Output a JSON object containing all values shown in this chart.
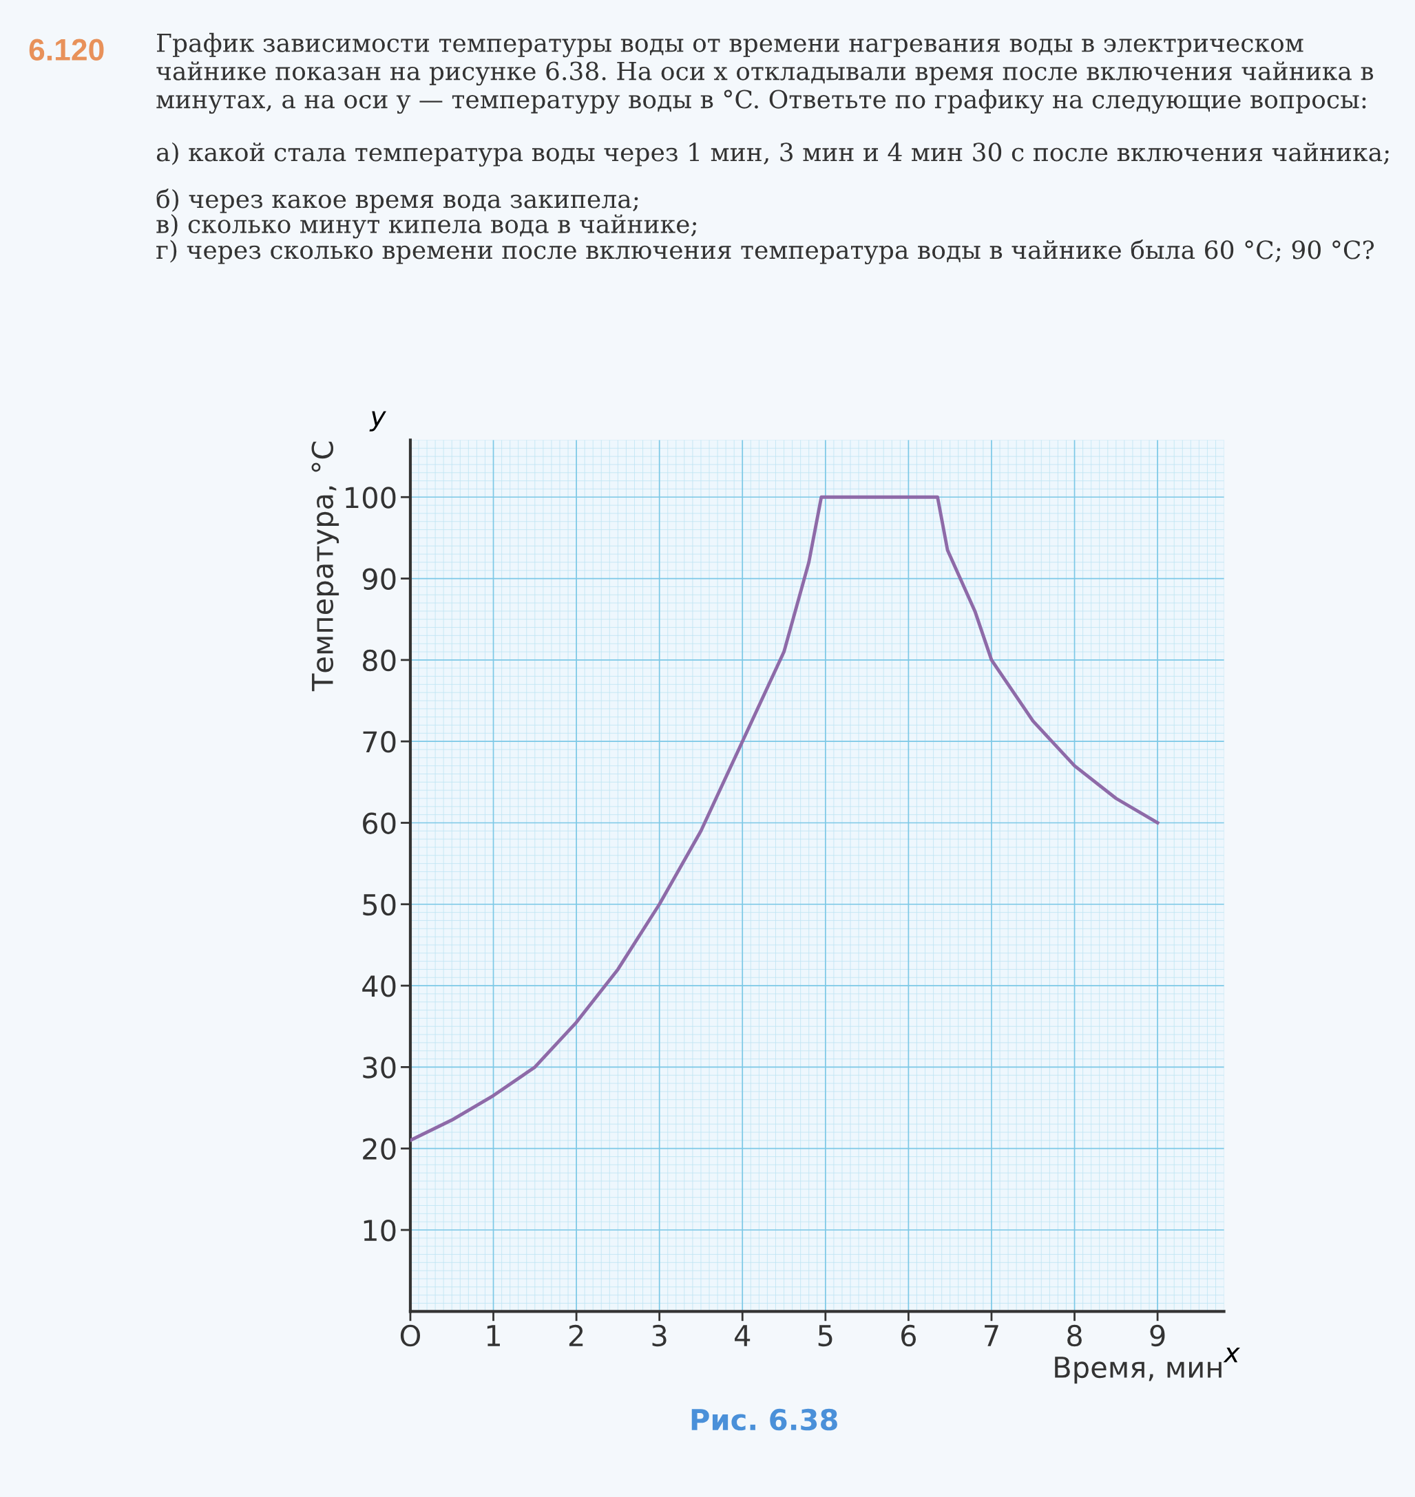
{
  "chart_data": {
    "type": "line",
    "title": "6.120",
    "annotations": [
      "График зависимости температуры воды от времени нагревания воды в электрическом чайнике показан на рисунке 6.38. На оси x откладывали время после включения чайника в минутах, а на оси y — температуру воды в °C. Ответьте по графику на следующие вопросы:",
      "а) какой стала температура воды через 1 мин, 3 мин и 4 мин 30 с после включения чайника;",
      "б) через какое время вода закипела;",
      "в) сколько минут кипела вода в чайнике;",
      "г) через сколько времени после включения температура воды в чайнике была 60 °C; 90 °C?",
      "y",
      "x",
      "Рис. 6.38"
    ],
    "xlabel": "Время, мин",
    "ylabel": "Температура, °C",
    "series": [
      {
        "color": "#8e6aa8",
        "x": [
          0,
          0.5,
          1,
          1.5,
          2,
          2.5,
          3,
          3.5,
          4,
          4.5,
          4.8,
          4.95,
          6.35,
          6.47,
          6.8,
          7,
          7.5,
          8,
          8.5,
          9
        ],
        "values": [
          21,
          23.5,
          26.5,
          30,
          35.5,
          42,
          50,
          59,
          70,
          81,
          92,
          100,
          100,
          93.5,
          86,
          80,
          72.5,
          67,
          63,
          60
        ]
      }
    ],
    "xlim": [
      0,
      9.8
    ],
    "ylim": [
      0,
      107
    ],
    "xticks": [
      {
        "value": 0,
        "label": "O"
      },
      1,
      2,
      3,
      4,
      5,
      6,
      7,
      8,
      9
    ],
    "yticks": [
      10,
      20,
      30,
      40,
      50,
      60,
      70,
      80,
      90,
      100
    ],
    "grid": true,
    "marker": "none",
    "line_style": "solid"
  }
}
